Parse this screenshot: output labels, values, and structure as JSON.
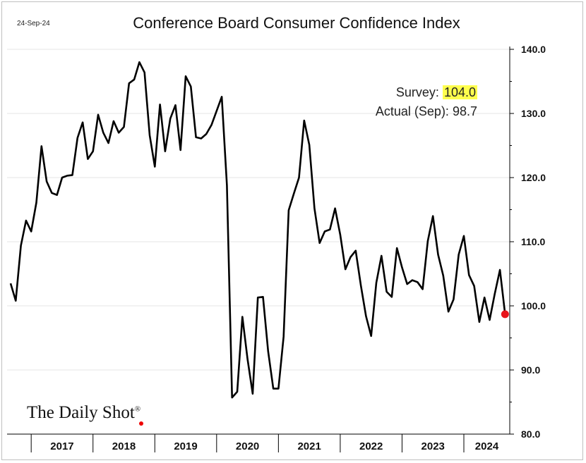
{
  "date_label": "24-Sep-24",
  "annotation": {
    "survey_label": "Survey:",
    "survey_value": "104.0",
    "actual_label": "Actual (Sep):",
    "actual_value": "98.7"
  },
  "brand": {
    "name": "The Daily Shot",
    "mark": "®"
  },
  "colors": {
    "line": "#000000",
    "highlight": "#ffff4d",
    "dot": "#e8141b",
    "grid": "#e6e6e6"
  },
  "chart_data": {
    "type": "line",
    "title": "Conference Board Consumer Confidence Index",
    "xlabel": "",
    "ylabel": "",
    "ylim": [
      80,
      140
    ],
    "y_ticks": [
      80,
      90,
      100,
      110,
      120,
      130,
      140
    ],
    "y_tick_labels": [
      "80.0",
      "90.0",
      "100.0",
      "110.0",
      "120.0",
      "130.0",
      "140.0"
    ],
    "x_categories": [
      "2017",
      "2018",
      "2019",
      "2020",
      "2021",
      "2022",
      "2023",
      "2024"
    ],
    "x_start": "2016-09",
    "x_end": "2024-09",
    "series": [
      {
        "name": "Consumer Confidence Index",
        "start": "2016-09",
        "frequency": "monthly",
        "values": [
          103.5,
          100.8,
          109.4,
          113.3,
          111.6,
          116.1,
          124.9,
          119.4,
          117.6,
          117.3,
          120.0,
          120.3,
          120.4,
          126.2,
          128.6,
          122.9,
          124.1,
          129.8,
          127.0,
          125.4,
          128.8,
          127.0,
          127.9,
          134.7,
          135.3,
          138.0,
          136.4,
          126.6,
          121.7,
          131.4,
          124.1,
          129.2,
          131.3,
          124.3,
          135.8,
          134.2,
          126.3,
          126.1,
          126.8,
          128.2,
          130.4,
          132.6,
          118.8,
          85.7,
          86.6,
          98.3,
          91.7,
          86.3,
          101.3,
          101.4,
          92.9,
          87.1,
          87.1,
          95.2,
          114.9,
          117.5,
          120.0,
          128.9,
          125.1,
          115.2,
          109.8,
          111.6,
          111.9,
          115.2,
          111.1,
          105.7,
          107.6,
          108.6,
          103.2,
          98.4,
          95.3,
          103.6,
          107.8,
          102.2,
          101.4,
          109.0,
          106.0,
          103.4,
          104.0,
          103.7,
          102.6,
          110.1,
          114.0,
          108.0,
          104.7,
          99.1,
          101.0,
          108.0,
          110.9,
          104.8,
          103.1,
          97.5,
          101.3,
          97.8,
          101.9,
          105.6,
          98.7
        ]
      }
    ],
    "highlight_point": {
      "date": "2024-09",
      "value": 98.7
    },
    "source": "The Daily Shot"
  }
}
